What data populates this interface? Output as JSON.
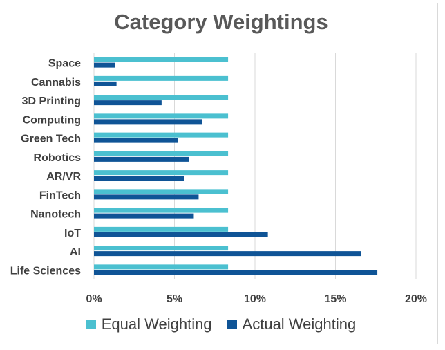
{
  "chart_data": {
    "type": "bar",
    "orientation": "horizontal",
    "title": "Category Weightings",
    "categories": [
      "Space",
      "Cannabis",
      "3D Printing",
      "Computing",
      "Green Tech",
      "Robotics",
      "AR/VR",
      "FinTech",
      "Nanotech",
      "IoT",
      "AI",
      "Life Sciences"
    ],
    "series": [
      {
        "name": "Equal Weighting",
        "color": "#4bc0d0",
        "values": [
          8.33,
          8.33,
          8.33,
          8.33,
          8.33,
          8.33,
          8.33,
          8.33,
          8.33,
          8.33,
          8.33,
          8.33
        ]
      },
      {
        "name": "Actual Weighting",
        "color": "#0f5496",
        "values": [
          1.3,
          1.4,
          4.2,
          6.7,
          5.2,
          5.9,
          5.6,
          6.5,
          6.2,
          10.8,
          16.6,
          17.6
        ]
      }
    ],
    "xlim": [
      0,
      20
    ],
    "xticks": [
      "0%",
      "5%",
      "10%",
      "15%",
      "20%"
    ],
    "grid": "vertical",
    "legend": "bottom"
  }
}
